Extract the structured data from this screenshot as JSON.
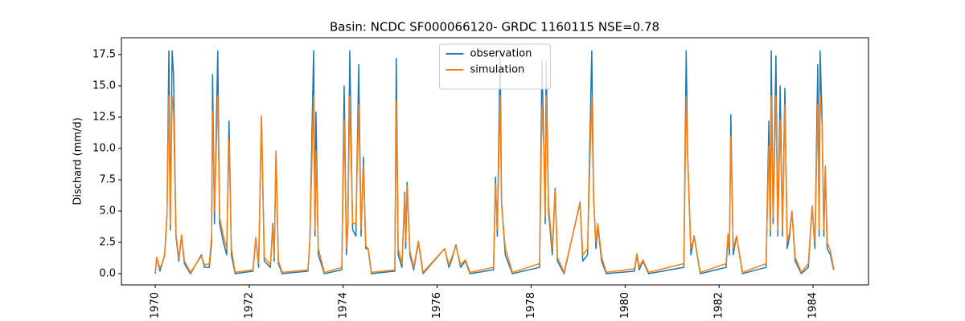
{
  "chart_data": {
    "type": "line",
    "title": "Basin: NCDC SF000066120- GRDC 1160115 NSE=0.78",
    "ylabel": "Dischard (mm/d)",
    "legend": "upper center",
    "x": [
      1970.0,
      1970.03,
      1970.1,
      1970.2,
      1970.25,
      1970.29,
      1970.32,
      1970.36,
      1970.39,
      1970.44,
      1970.5,
      1970.56,
      1970.62,
      1970.75,
      1970.98,
      1971.05,
      1971.15,
      1971.2,
      1971.22,
      1971.26,
      1971.33,
      1971.37,
      1971.45,
      1971.52,
      1971.57,
      1971.62,
      1971.7,
      1972.08,
      1972.14,
      1972.2,
      1972.26,
      1972.32,
      1972.45,
      1972.5,
      1972.53,
      1972.57,
      1972.62,
      1972.7,
      1973.25,
      1973.29,
      1973.37,
      1973.4,
      1973.42,
      1973.47,
      1973.6,
      1973.97,
      1974.02,
      1974.07,
      1974.1,
      1974.14,
      1974.2,
      1974.27,
      1974.33,
      1974.38,
      1974.43,
      1974.48,
      1974.53,
      1974.6,
      1975.1,
      1975.13,
      1975.17,
      1975.25,
      1975.31,
      1975.33,
      1975.36,
      1975.42,
      1975.5,
      1975.6,
      1975.7,
      1976.16,
      1976.25,
      1976.3,
      1976.4,
      1976.5,
      1976.6,
      1976.7,
      1977.2,
      1977.24,
      1977.28,
      1977.34,
      1977.37,
      1977.45,
      1977.6,
      1978.18,
      1978.23,
      1978.27,
      1978.3,
      1978.32,
      1978.37,
      1978.45,
      1978.51,
      1978.56,
      1978.7,
      1979.04,
      1979.1,
      1979.2,
      1979.29,
      1979.33,
      1979.38,
      1979.42,
      1979.5,
      1979.6,
      1980.2,
      1980.25,
      1980.3,
      1980.38,
      1980.5,
      1981.25,
      1981.3,
      1981.33,
      1981.4,
      1981.47,
      1981.6,
      1982.15,
      1982.19,
      1982.22,
      1982.25,
      1982.3,
      1982.37,
      1982.5,
      1983.0,
      1983.06,
      1983.09,
      1983.11,
      1983.15,
      1983.21,
      1983.25,
      1983.3,
      1983.35,
      1983.4,
      1983.45,
      1983.5,
      1983.55,
      1983.62,
      1983.75,
      1983.9,
      1983.98,
      1984.04,
      1984.1,
      1984.13,
      1984.15,
      1984.19,
      1984.23,
      1984.26,
      1984.3,
      1984.37,
      1984.44
    ],
    "series": [
      {
        "name": "observation",
        "color": "#1f77b4",
        "values": [
          0,
          1.3,
          0.2,
          1.5,
          4.7,
          17.8,
          3.5,
          17.8,
          15.8,
          3,
          1,
          3,
          0.8,
          0,
          1.5,
          0.5,
          0.5,
          2.5,
          15.9,
          4,
          17.8,
          4,
          2.5,
          1.5,
          12.2,
          1.5,
          0,
          0.2,
          2.9,
          0.5,
          12.6,
          1,
          0.5,
          4,
          1,
          9.8,
          0.8,
          0,
          0.2,
          2.6,
          17.8,
          3,
          12.9,
          1.5,
          0,
          0.3,
          15,
          1.5,
          4,
          17.8,
          3.5,
          3,
          16.7,
          3,
          9.3,
          2,
          2,
          0,
          0.2,
          17.2,
          1.5,
          0.5,
          6.5,
          2,
          7.3,
          1.5,
          0.3,
          2.5,
          0,
          2,
          0.5,
          1,
          2.3,
          0.5,
          1,
          0,
          0.3,
          7.7,
          3,
          17.8,
          5.7,
          1.5,
          0,
          0.5,
          17,
          10.3,
          4,
          17,
          5,
          1.5,
          6.8,
          1,
          0,
          5.7,
          1,
          1.5,
          17.8,
          6,
          2,
          3.8,
          1,
          0,
          0.2,
          1.5,
          0.3,
          1,
          0,
          0.5,
          17.8,
          9.7,
          1.5,
          3,
          0,
          0.5,
          3,
          1.5,
          12.7,
          1.5,
          3,
          0,
          0.5,
          12.2,
          3,
          17.8,
          4,
          17.4,
          3,
          15,
          3,
          14.8,
          2,
          3,
          5,
          1,
          0,
          0.5,
          5.4,
          2,
          16.7,
          3,
          17.8,
          12.5,
          3,
          8.5,
          2,
          1.5,
          0.3
        ]
      },
      {
        "name": "simulation",
        "color": "#ff7f0e",
        "values": [
          0.1,
          1.3,
          0.4,
          1.4,
          4.8,
          14.2,
          4,
          14.2,
          12.8,
          3.2,
          1.2,
          3.1,
          1,
          0.1,
          1.4,
          0.7,
          0.8,
          3,
          13,
          5,
          14.2,
          4.5,
          3,
          2,
          10.7,
          2,
          0.1,
          0.3,
          2.9,
          0.8,
          12.6,
          1.3,
          0.7,
          3.9,
          1.3,
          9.8,
          1,
          0.1,
          0.3,
          2.6,
          14.2,
          3.5,
          9.8,
          2,
          0.1,
          0.5,
          12.3,
          2,
          4.1,
          14.2,
          4,
          4,
          13.5,
          3.5,
          8.7,
          2.2,
          2,
          0.1,
          0.3,
          13.8,
          2,
          0.8,
          6.2,
          2.5,
          7,
          1.8,
          0.5,
          2.6,
          0.1,
          2,
          0.7,
          1.2,
          2.2,
          0.7,
          1.1,
          0.1,
          0.5,
          7.2,
          3.5,
          14.2,
          5.5,
          2,
          0.1,
          0.8,
          13.4,
          10,
          4.5,
          14.2,
          5.5,
          2,
          6.6,
          1.3,
          0.1,
          5.6,
          1.5,
          2,
          14.2,
          5.8,
          2.5,
          4,
          1.3,
          0.1,
          0.4,
          1.6,
          0.5,
          1.1,
          0.1,
          0.8,
          14.2,
          9.5,
          2,
          2.9,
          0.1,
          0.8,
          3.2,
          2,
          11,
          2,
          3,
          0.1,
          0.8,
          10.2,
          3.5,
          14.2,
          4.5,
          14.2,
          3.5,
          12.3,
          3.5,
          13.5,
          2.5,
          3.3,
          5,
          1.3,
          0.1,
          0.8,
          5.4,
          2.5,
          13.5,
          3.5,
          14.2,
          12,
          3.5,
          8.6,
          2.5,
          1.8,
          0.4
        ]
      }
    ],
    "xlim": [
      1969.28,
      1985.18
    ],
    "xticks": [
      1970,
      1972,
      1974,
      1976,
      1978,
      1980,
      1982,
      1984
    ],
    "ylim": [
      -0.9,
      18.85
    ],
    "yticks": [
      {
        "value": 0,
        "label": "0.0"
      },
      {
        "value": 2.5,
        "label": "2.5"
      },
      {
        "value": 5,
        "label": "5.0"
      },
      {
        "value": 7.5,
        "label": "7.5"
      },
      {
        "value": 10,
        "label": "10.0"
      },
      {
        "value": 12.5,
        "label": "12.5"
      },
      {
        "value": 15,
        "label": "15.0"
      },
      {
        "value": 17.5,
        "label": "17.5"
      }
    ]
  }
}
